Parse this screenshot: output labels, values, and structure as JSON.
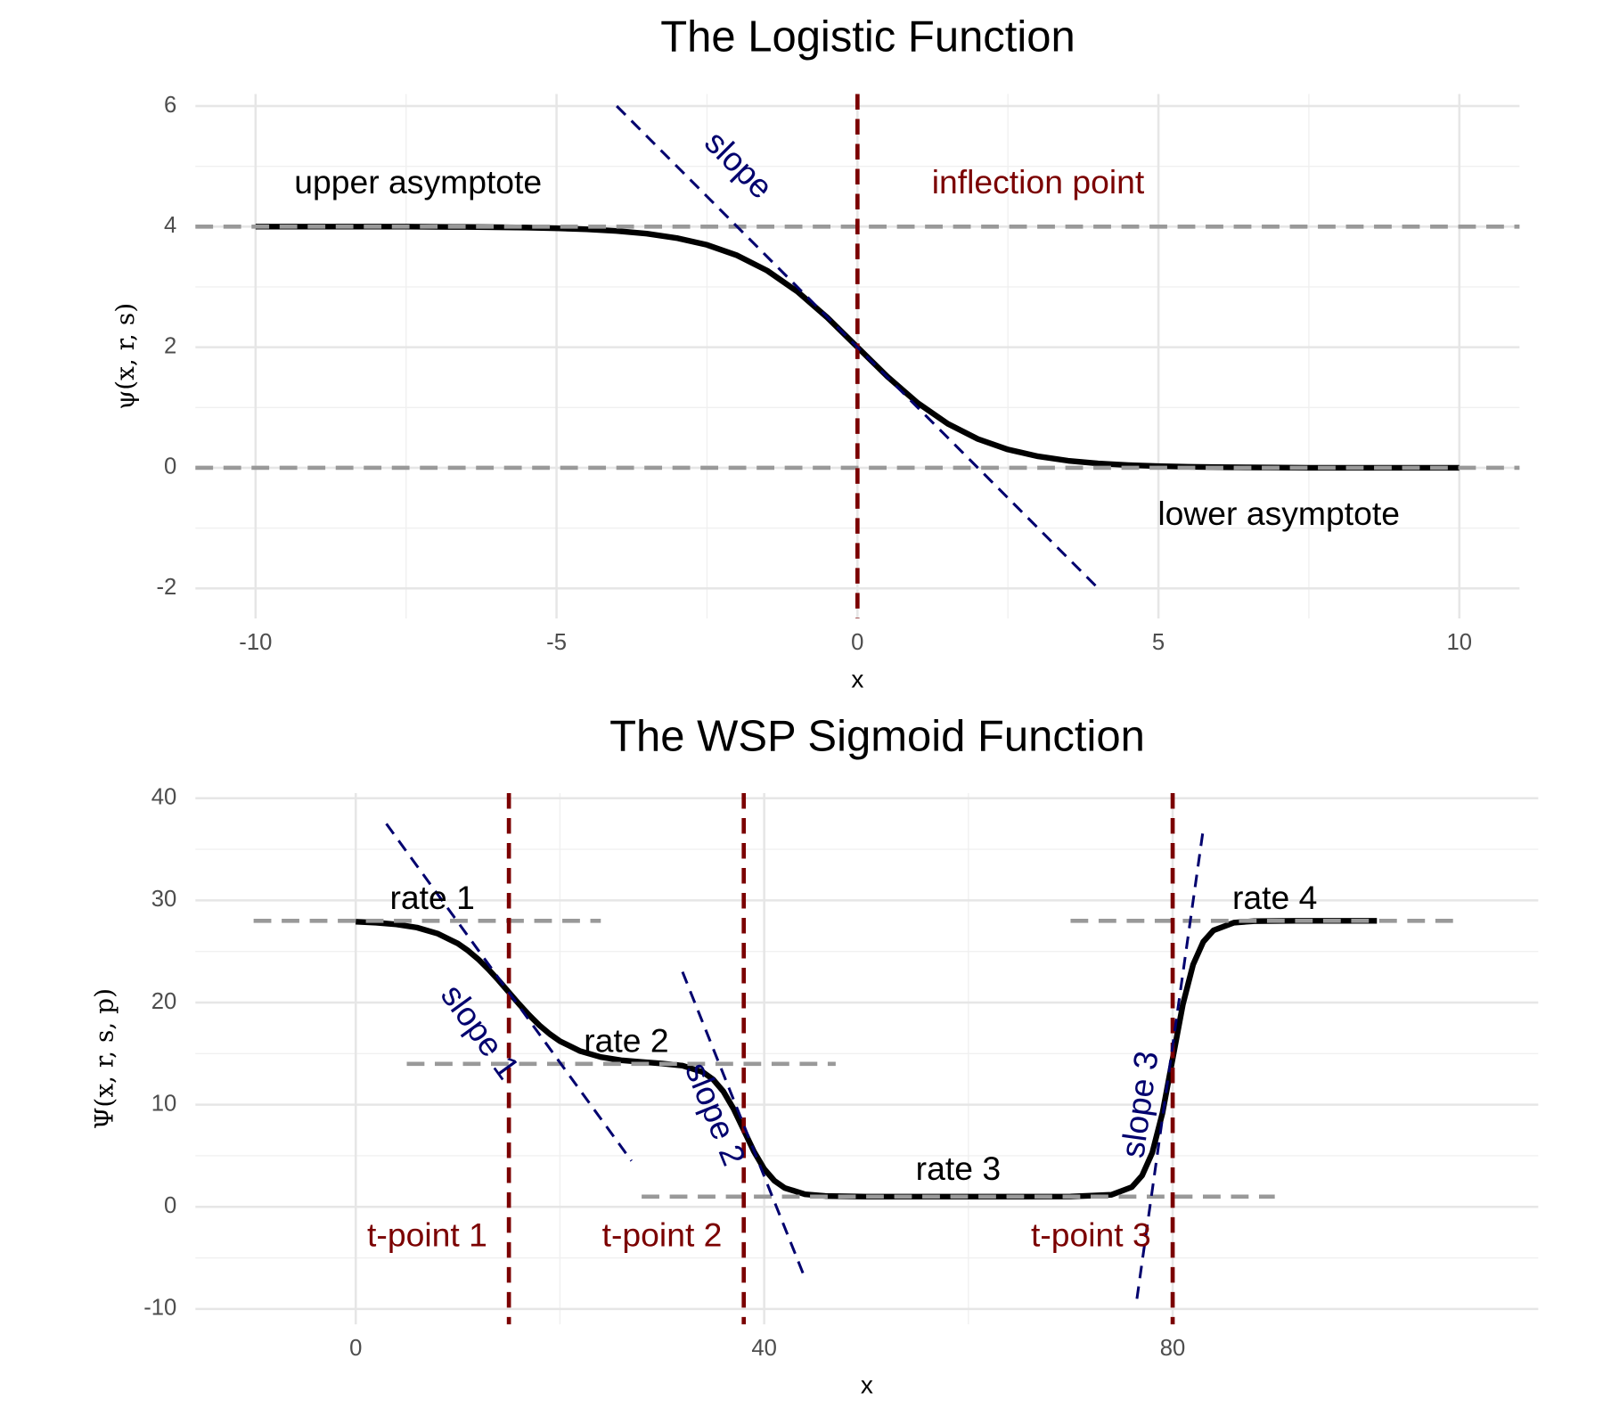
{
  "chart_data": [
    {
      "type": "line",
      "title": "The Logistic Function",
      "x_label": "x",
      "y_label": "ψ(x, r, s)",
      "xlim": [
        -11,
        11
      ],
      "ylim": [
        -2.5,
        6.2
      ],
      "xticks": [
        -10,
        -5,
        0,
        5,
        10
      ],
      "yticks": [
        -2,
        0,
        2,
        4,
        6
      ],
      "grid": true,
      "color": "#000000",
      "x": [
        -10,
        -9.5,
        -9,
        -8.5,
        -8,
        -7.5,
        -7,
        -6.5,
        -6,
        -5.5,
        -5,
        -4.5,
        -4,
        -3.5,
        -3,
        -2.5,
        -2,
        -1.5,
        -1,
        -0.5,
        0,
        0.5,
        1,
        1.5,
        2,
        2.5,
        3,
        3.5,
        4,
        4.5,
        5,
        5.5,
        6,
        6.5,
        7,
        7.5,
        8,
        8.5,
        9,
        9.5,
        10
      ],
      "values": [
        4,
        4,
        4,
        4,
        4,
        4,
        3.996,
        3.994,
        3.99,
        3.984,
        3.973,
        3.956,
        3.928,
        3.883,
        3.81,
        3.697,
        3.523,
        3.27,
        2.924,
        2.49,
        2,
        1.51,
        1.076,
        0.73,
        0.477,
        0.303,
        0.19,
        0.117,
        0.072,
        0.044,
        0.027,
        0.016,
        0.01,
        0.006,
        0.004,
        0,
        0,
        0,
        0,
        0,
        0
      ],
      "asymptote_color": "#999999",
      "asymptotes": [
        {
          "x": [
            -11,
            11
          ],
          "y": [
            4,
            4
          ]
        },
        {
          "x": [
            -11,
            11
          ],
          "y": [
            0,
            0
          ]
        }
      ],
      "turning_color": "#7b0000",
      "turning_points": [
        0
      ],
      "slope_color": "#00006e",
      "slopes": [
        {
          "x": [
            -4,
            4
          ],
          "y": [
            6,
            -2
          ]
        }
      ],
      "annotations": [
        {
          "text": "upper asymptote",
          "color": "#000000"
        },
        {
          "text": "inflection point",
          "color": "#7b0000"
        },
        {
          "text": "lower asymptote",
          "color": "#000000"
        },
        {
          "text": "slope",
          "color": "#00006e"
        }
      ]
    },
    {
      "type": "line",
      "title": "The WSP Sigmoid Function",
      "x_label": "x",
      "y_label": "Ψ(x, r, s, p)",
      "xlim": [
        -15.7,
        115.8
      ],
      "ylim": [
        -11.5,
        40.5
      ],
      "xticks": [
        0,
        40,
        80
      ],
      "yticks": [
        -10,
        0,
        10,
        20,
        30,
        40
      ],
      "grid": true,
      "color": "#000000",
      "x": [
        0,
        2,
        4,
        6,
        8,
        10,
        11,
        12,
        13,
        14,
        15,
        16,
        17,
        18,
        19,
        20,
        22,
        24,
        26,
        28,
        30,
        32,
        34,
        35,
        36,
        37,
        38,
        39,
        40,
        41,
        42,
        44,
        46,
        50,
        55,
        60,
        65,
        70,
        74,
        76,
        77,
        78,
        79,
        80,
        81,
        82,
        83,
        84,
        86,
        88,
        92,
        96,
        100
      ],
      "values": [
        27.91,
        27.82,
        27.65,
        27.34,
        26.76,
        25.78,
        25.08,
        24.24,
        23.25,
        22.16,
        21,
        19.84,
        18.75,
        17.76,
        16.92,
        16.22,
        15.24,
        14.66,
        14.35,
        14.18,
        14.03,
        13.82,
        13.19,
        12.47,
        11.3,
        9.6,
        7.51,
        5.41,
        3.71,
        2.55,
        1.85,
        1.23,
        1.06,
        1,
        1,
        1,
        1,
        1.01,
        1.18,
        1.93,
        3.05,
        5.29,
        9.18,
        14.5,
        19.82,
        23.71,
        25.95,
        27.07,
        27.82,
        27.97,
        28,
        28,
        28
      ],
      "asymptote_color": "#999999",
      "asymptotes": [
        {
          "x": [
            -10,
            24
          ],
          "y": [
            28,
            28
          ]
        },
        {
          "x": [
            70,
            108
          ],
          "y": [
            28,
            28
          ]
        },
        {
          "x": [
            5,
            47
          ],
          "y": [
            14,
            14
          ]
        },
        {
          "x": [
            28,
            90
          ],
          "y": [
            1,
            1
          ]
        }
      ],
      "turning_color": "#7b0000",
      "turning_points": [
        15,
        38,
        80
      ],
      "slope_color": "#00006e",
      "slopes": [
        {
          "x": [
            3,
            27
          ],
          "y": [
            37.5,
            4.5
          ]
        },
        {
          "x": [
            32,
            44
          ],
          "y": [
            23,
            -7
          ]
        },
        {
          "x": [
            76.5,
            83
          ],
          "y": [
            -9,
            37
          ]
        }
      ],
      "annotations": [
        {
          "text": "rate 1",
          "color": "#000000"
        },
        {
          "text": "rate 2",
          "color": "#000000"
        },
        {
          "text": "rate 3",
          "color": "#000000"
        },
        {
          "text": "rate 4",
          "color": "#000000"
        },
        {
          "text": "t-point 1",
          "color": "#7b0000"
        },
        {
          "text": "t-point 2",
          "color": "#7b0000"
        },
        {
          "text": "t-point 3",
          "color": "#7b0000"
        },
        {
          "text": "slope 1",
          "color": "#00006e"
        },
        {
          "text": "slope 2",
          "color": "#00006e"
        },
        {
          "text": "slope 3",
          "color": "#00006e"
        }
      ]
    }
  ]
}
